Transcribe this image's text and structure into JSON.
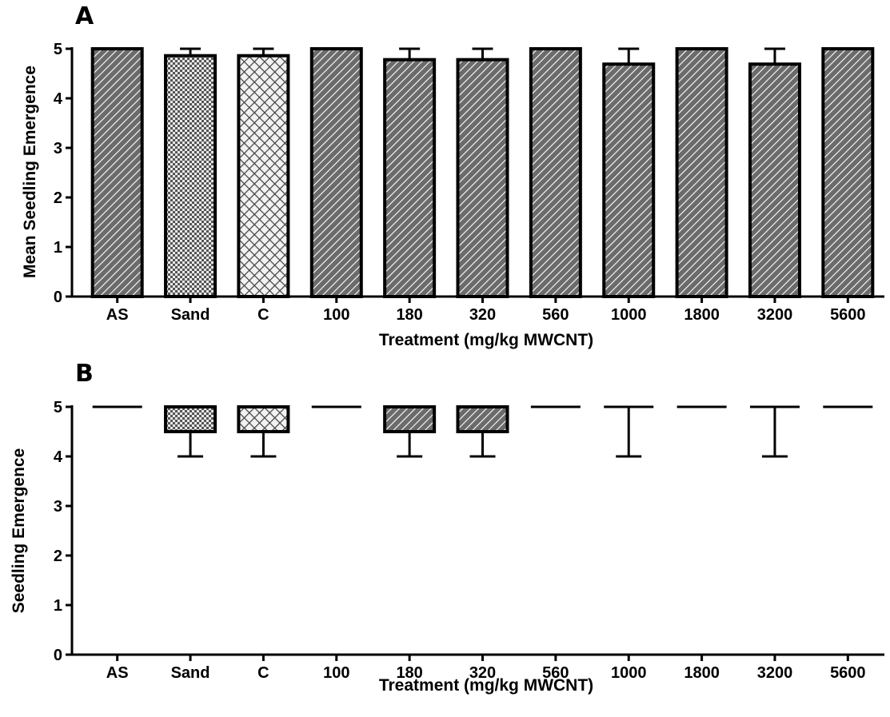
{
  "chart_data": [
    {
      "panel_label": "A",
      "type": "bar",
      "categories": [
        "AS",
        "Sand",
        "C",
        "100",
        "180",
        "320",
        "560",
        "1000",
        "1800",
        "3200",
        "5600"
      ],
      "values": [
        5,
        4.86,
        4.86,
        5,
        4.78,
        4.78,
        5,
        4.69,
        5,
        4.69,
        5
      ],
      "error_upper": [
        0,
        0.14,
        0.14,
        0,
        0.22,
        0.22,
        0,
        0.31,
        0,
        0.31,
        0
      ],
      "fills": [
        "hatch",
        "checker",
        "diamond",
        "hatch",
        "hatch",
        "hatch",
        "hatch",
        "hatch",
        "hatch",
        "hatch",
        "hatch"
      ],
      "xlabel": "Treatment (mg/kg MWCNT)",
      "ylabel": "Mean Seedling Emergence",
      "ylim": [
        0,
        5
      ],
      "yticks": [
        "0",
        "1",
        "2",
        "3",
        "4",
        "5"
      ],
      "grid": false
    },
    {
      "panel_label": "B",
      "type": "box",
      "categories": [
        "AS",
        "Sand",
        "C",
        "100",
        "180",
        "320",
        "560",
        "1000",
        "1800",
        "3200",
        "5600"
      ],
      "median": [
        5,
        5,
        5,
        5,
        5,
        5,
        5,
        5,
        5,
        5,
        5
      ],
      "q1": [
        5,
        4.5,
        4.5,
        5,
        4.5,
        4.5,
        5,
        5,
        5,
        5,
        5
      ],
      "q3": [
        5,
        5,
        5,
        5,
        5,
        5,
        5,
        5,
        5,
        5,
        5
      ],
      "min": [
        5,
        4,
        4,
        5,
        4,
        4,
        5,
        4,
        5,
        4,
        5
      ],
      "max": [
        5,
        5,
        5,
        5,
        5,
        5,
        5,
        5,
        5,
        5,
        5
      ],
      "fills": [
        "hatch",
        "checker",
        "diamond",
        "hatch",
        "hatch",
        "hatch",
        "hatch",
        "hatch",
        "hatch",
        "hatch",
        "hatch"
      ],
      "xlabel": "Treatment (mg/kg MWCNT)",
      "ylabel": "Seedling Emergence",
      "ylim": [
        0,
        5
      ],
      "yticks": [
        "0",
        "1",
        "2",
        "3",
        "4",
        "5"
      ],
      "grid": false
    }
  ]
}
